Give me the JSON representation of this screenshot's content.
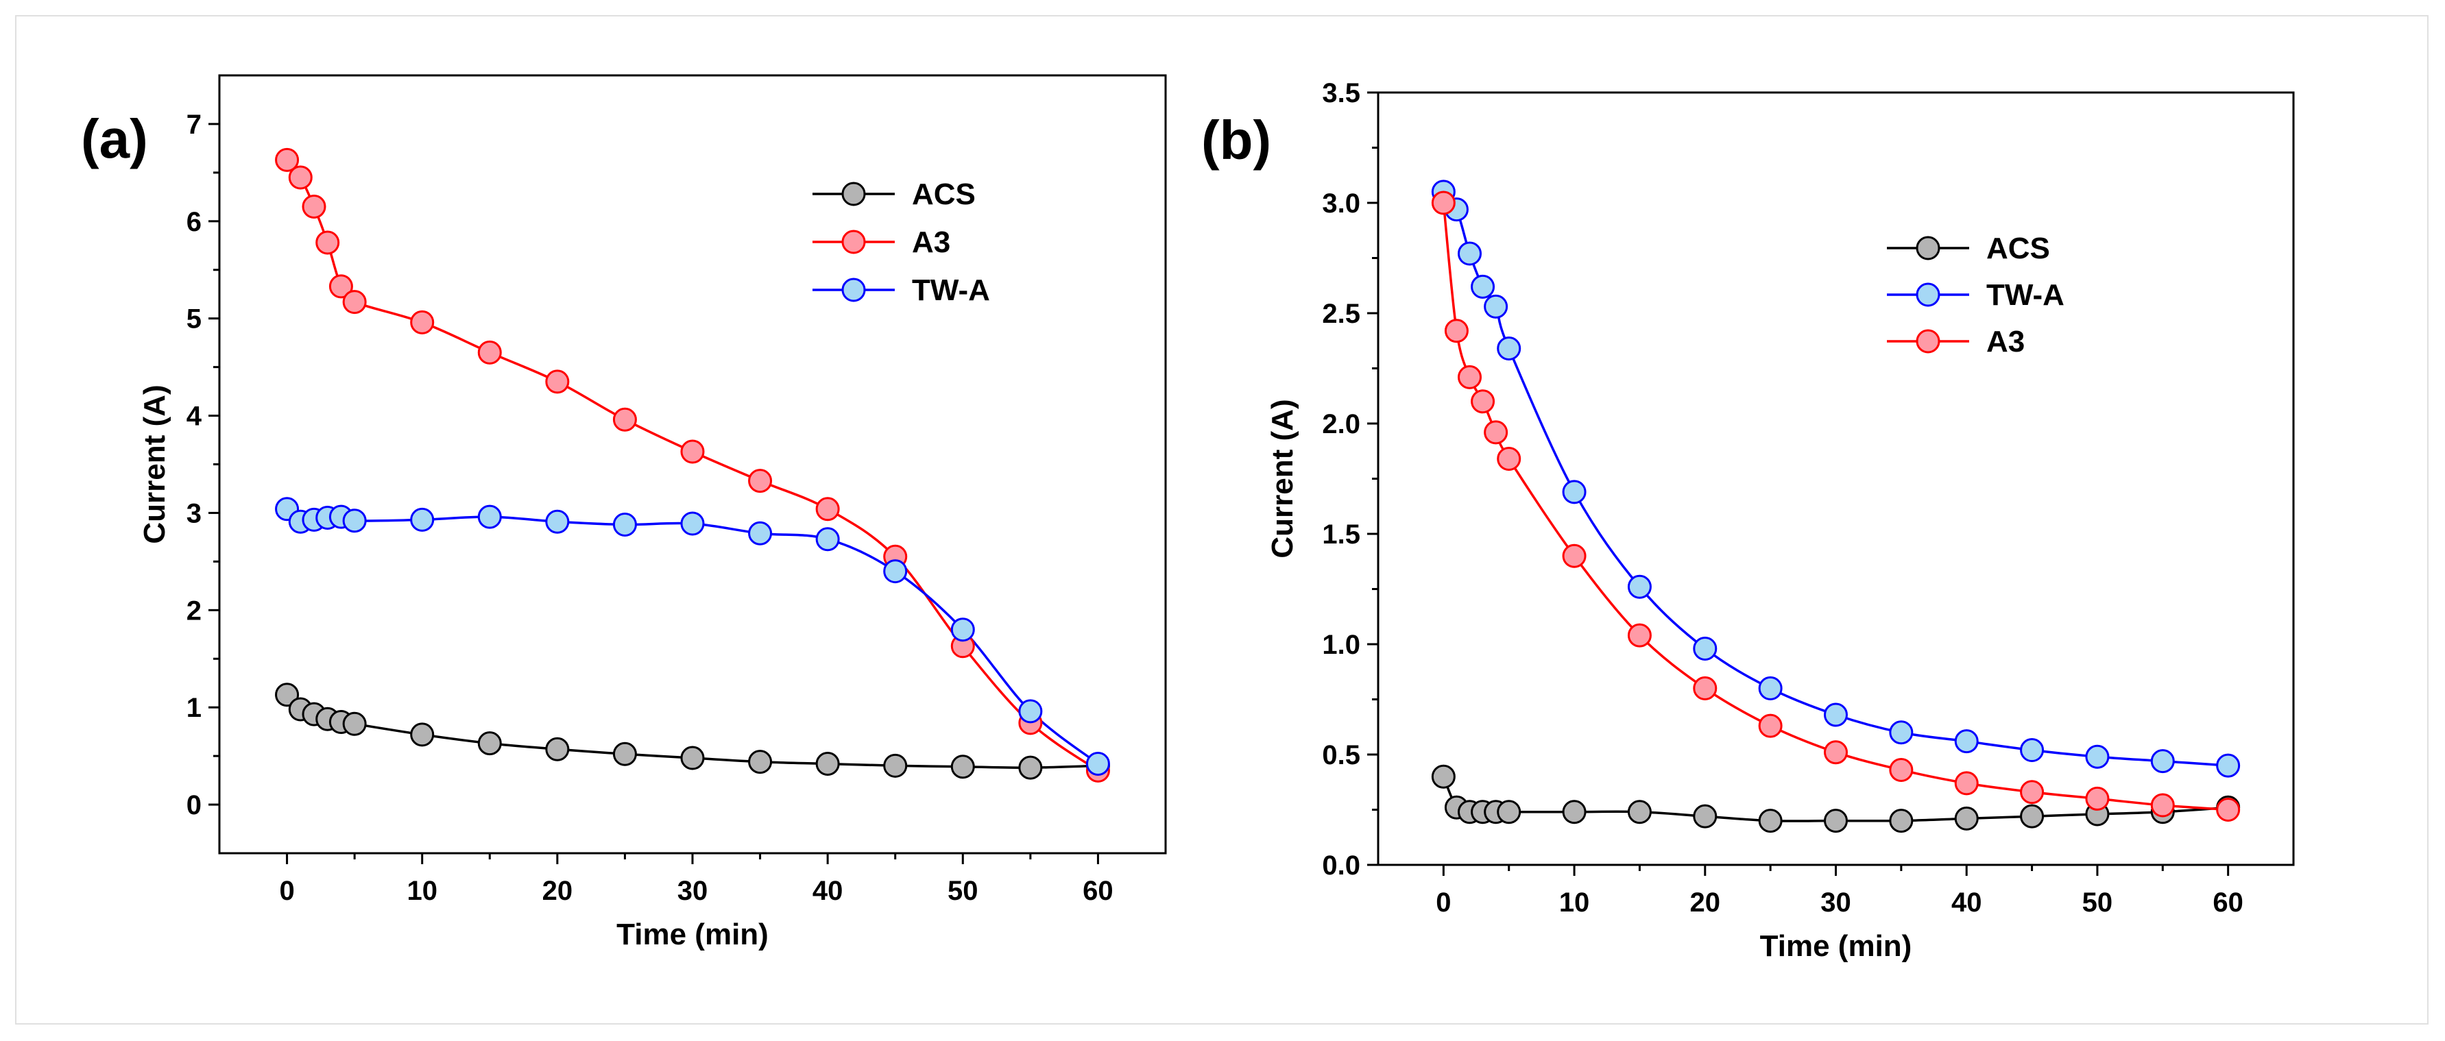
{
  "chart_data": [
    {
      "panel_label": "(a)",
      "type": "line",
      "xlabel": "Time (min)",
      "ylabel": "Current (A)",
      "xlim": [
        -5,
        65
      ],
      "ylim": [
        -0.5,
        7.5
      ],
      "xticks": [
        0,
        10,
        20,
        30,
        40,
        50,
        60
      ],
      "yticks": [
        0,
        1,
        2,
        3,
        4,
        5,
        6,
        7
      ],
      "xtick_labels": [
        "0",
        "10",
        "20",
        "30",
        "40",
        "50",
        "60"
      ],
      "ytick_labels": [
        "0",
        "1",
        "2",
        "3",
        "4",
        "5",
        "6",
        "7"
      ],
      "legend_position": "top-right",
      "legend_order": [
        "ACS",
        "A3",
        "TW-A"
      ],
      "series": [
        {
          "name": "ACS",
          "line_color": "#000000",
          "marker_color": "#b4b4b4",
          "x": [
            0,
            1,
            2,
            3,
            4,
            5,
            10,
            15,
            20,
            25,
            30,
            35,
            40,
            45,
            50,
            55,
            60
          ],
          "y": [
            1.13,
            0.98,
            0.93,
            0.88,
            0.85,
            0.83,
            0.72,
            0.63,
            0.57,
            0.52,
            0.48,
            0.44,
            0.42,
            0.4,
            0.39,
            0.38,
            0.4
          ]
        },
        {
          "name": "A3",
          "line_color": "#ff0000",
          "marker_color": "#ff9aa6",
          "x": [
            0,
            1,
            2,
            3,
            4,
            5,
            10,
            15,
            20,
            25,
            30,
            35,
            40,
            45,
            50,
            55,
            60
          ],
          "y": [
            6.63,
            6.45,
            6.15,
            5.78,
            5.33,
            5.17,
            4.96,
            4.65,
            4.35,
            3.96,
            3.63,
            3.33,
            3.04,
            2.55,
            1.63,
            0.84,
            0.35
          ]
        },
        {
          "name": "TW-A",
          "line_color": "#0000ff",
          "marker_color": "#a6d8f5",
          "x": [
            0,
            1,
            2,
            3,
            4,
            5,
            10,
            15,
            20,
            25,
            30,
            35,
            40,
            45,
            50,
            55,
            60
          ],
          "y": [
            3.04,
            2.91,
            2.93,
            2.95,
            2.96,
            2.92,
            2.93,
            2.96,
            2.91,
            2.88,
            2.89,
            2.79,
            2.73,
            2.4,
            1.8,
            0.96,
            0.42
          ]
        }
      ]
    },
    {
      "panel_label": "(b)",
      "type": "line",
      "xlabel": "Time (min)",
      "ylabel": "Current (A)",
      "xlim": [
        -5,
        65
      ],
      "ylim": [
        0,
        3.5
      ],
      "xticks": [
        0,
        10,
        20,
        30,
        40,
        50,
        60
      ],
      "yticks": [
        0,
        0.5,
        1.0,
        1.5,
        2.0,
        2.5,
        3.0,
        3.5
      ],
      "xtick_labels": [
        "0",
        "10",
        "20",
        "30",
        "40",
        "50",
        "60"
      ],
      "ytick_labels": [
        "0.0",
        "0.5",
        "1.0",
        "1.5",
        "2.0",
        "2.5",
        "3.0",
        "3.5"
      ],
      "legend_position": "top-right",
      "legend_order": [
        "ACS",
        "TW-A",
        "A3"
      ],
      "series": [
        {
          "name": "ACS",
          "line_color": "#000000",
          "marker_color": "#b4b4b4",
          "x": [
            0,
            1,
            2,
            3,
            4,
            5,
            10,
            15,
            20,
            25,
            30,
            35,
            40,
            45,
            50,
            55,
            60
          ],
          "y": [
            0.4,
            0.26,
            0.24,
            0.24,
            0.24,
            0.24,
            0.24,
            0.24,
            0.22,
            0.2,
            0.2,
            0.2,
            0.21,
            0.22,
            0.23,
            0.24,
            0.26
          ]
        },
        {
          "name": "TW-A",
          "line_color": "#0000ff",
          "marker_color": "#a6d8f5",
          "x": [
            0,
            1,
            2,
            3,
            4,
            5,
            10,
            15,
            20,
            25,
            30,
            35,
            40,
            45,
            50,
            55,
            60
          ],
          "y": [
            3.05,
            2.97,
            2.77,
            2.62,
            2.53,
            2.34,
            1.69,
            1.26,
            0.98,
            0.8,
            0.68,
            0.6,
            0.56,
            0.52,
            0.49,
            0.47,
            0.45
          ]
        },
        {
          "name": "A3",
          "line_color": "#ff0000",
          "marker_color": "#ff9aa6",
          "x": [
            0,
            1,
            2,
            3,
            4,
            5,
            10,
            15,
            20,
            25,
            30,
            35,
            40,
            45,
            50,
            55,
            60
          ],
          "y": [
            3.0,
            2.42,
            2.21,
            2.1,
            1.96,
            1.84,
            1.4,
            1.04,
            0.8,
            0.63,
            0.51,
            0.43,
            0.37,
            0.33,
            0.3,
            0.27,
            0.25
          ]
        }
      ]
    }
  ]
}
